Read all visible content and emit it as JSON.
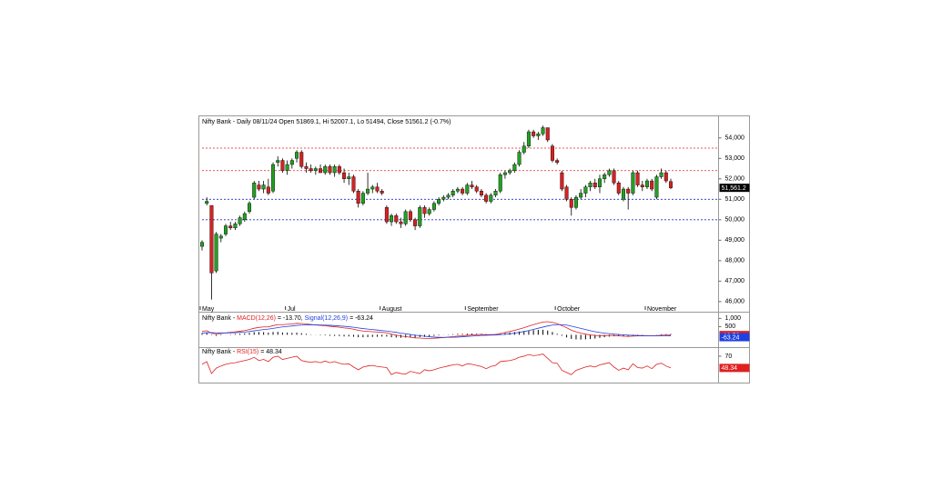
{
  "chart_data": [
    {
      "type": "candlestick",
      "title": "Nifty Bank - Daily 08/11/24 Open 51869.1, Hi 52007.1, Lo 51494, Close 51561.2 (-0.7%)",
      "categories": [
        "May",
        null,
        null,
        null,
        null,
        null,
        null,
        null,
        null,
        null,
        null,
        null,
        null,
        null,
        null,
        null,
        null,
        null,
        "Jul",
        null,
        null,
        null,
        null,
        null,
        null,
        null,
        null,
        null,
        null,
        null,
        null,
        null,
        null,
        null,
        null,
        null,
        null,
        null,
        "August",
        null,
        null,
        null,
        null,
        null,
        null,
        null,
        null,
        null,
        null,
        null,
        null,
        null,
        null,
        null,
        null,
        null,
        "September",
        null,
        null,
        null,
        null,
        null,
        null,
        null,
        null,
        null,
        null,
        null,
        null,
        null,
        null,
        null,
        null,
        null,
        null,
        "October",
        null,
        null,
        null,
        null,
        null,
        null,
        null,
        null,
        null,
        null,
        null,
        null,
        null,
        null,
        null,
        null,
        null,
        null,
        "November",
        null,
        null,
        null,
        null,
        null
      ],
      "ohlc": [
        [
          48700,
          49000,
          48500,
          48900
        ],
        [
          50800,
          51100,
          50700,
          50900
        ],
        [
          50700,
          50700,
          46100,
          47400
        ],
        [
          47500,
          49400,
          47400,
          49300
        ],
        [
          49100,
          49300,
          48900,
          49200
        ],
        [
          49300,
          49800,
          49200,
          49700
        ],
        [
          49700,
          49900,
          49500,
          49600
        ],
        [
          49600,
          49900,
          49500,
          49800
        ],
        [
          49800,
          50200,
          49700,
          50100
        ],
        [
          50000,
          50400,
          49900,
          50300
        ],
        [
          50400,
          50900,
          50300,
          50800
        ],
        [
          51100,
          51900,
          51000,
          51800
        ],
        [
          51700,
          51900,
          51400,
          51500
        ],
        [
          51500,
          51900,
          51300,
          51700
        ],
        [
          51600,
          52000,
          51200,
          51300
        ],
        [
          51400,
          52800,
          51300,
          52700
        ],
        [
          52800,
          53100,
          52600,
          52900
        ],
        [
          52900,
          53000,
          52300,
          52400
        ],
        [
          52400,
          52900,
          52200,
          52700
        ],
        [
          52700,
          53000,
          52500,
          52900
        ],
        [
          53000,
          53400,
          52800,
          53300
        ],
        [
          53300,
          53400,
          52500,
          52600
        ],
        [
          52600,
          52800,
          52300,
          52500
        ],
        [
          52500,
          52700,
          52300,
          52400
        ],
        [
          52400,
          52600,
          52200,
          52500
        ],
        [
          52500,
          52700,
          52300,
          52300
        ],
        [
          52300,
          52700,
          52200,
          52600
        ],
        [
          52600,
          52700,
          52200,
          52300
        ],
        [
          52300,
          52700,
          52100,
          52600
        ],
        [
          52600,
          52700,
          52200,
          52300
        ],
        [
          52300,
          52500,
          51800,
          52000
        ],
        [
          52000,
          52300,
          51700,
          52100
        ],
        [
          52100,
          52200,
          51300,
          51400
        ],
        [
          51400,
          51500,
          50600,
          50800
        ],
        [
          50800,
          51400,
          50700,
          51300
        ],
        [
          51300,
          52300,
          51200,
          51500
        ],
        [
          51500,
          51700,
          51300,
          51600
        ],
        [
          51600,
          51800,
          51300,
          51400
        ],
        [
          51400,
          51500,
          51200,
          51300
        ],
        [
          50600,
          50700,
          49800,
          49900
        ],
        [
          49900,
          50300,
          49700,
          50200
        ],
        [
          50200,
          50300,
          49800,
          49900
        ],
        [
          49900,
          50100,
          49600,
          49800
        ],
        [
          49800,
          50500,
          49700,
          50400
        ],
        [
          50400,
          50500,
          49900,
          50000
        ],
        [
          50000,
          50100,
          49500,
          49700
        ],
        [
          49700,
          50700,
          49600,
          50600
        ],
        [
          50600,
          50700,
          50100,
          50300
        ],
        [
          50300,
          50600,
          50200,
          50500
        ],
        [
          50500,
          50900,
          50400,
          50800
        ],
        [
          50800,
          51100,
          50700,
          51000
        ],
        [
          51000,
          51200,
          50900,
          51100
        ],
        [
          51100,
          51300,
          51000,
          51200
        ],
        [
          51200,
          51500,
          51100,
          51400
        ],
        [
          51400,
          51600,
          51300,
          51500
        ],
        [
          51500,
          51600,
          51200,
          51300
        ],
        [
          51300,
          51800,
          51200,
          51700
        ],
        [
          51700,
          51900,
          51500,
          51600
        ],
        [
          51600,
          51700,
          51300,
          51400
        ],
        [
          51400,
          51500,
          51100,
          51200
        ],
        [
          51200,
          51300,
          50800,
          50900
        ],
        [
          50900,
          51300,
          50800,
          51200
        ],
        [
          51200,
          51500,
          51100,
          51400
        ],
        [
          51400,
          52300,
          51300,
          52200
        ],
        [
          52200,
          52400,
          52000,
          52300
        ],
        [
          52300,
          52500,
          52200,
          52400
        ],
        [
          52400,
          52800,
          52300,
          52700
        ],
        [
          52700,
          53400,
          52600,
          53300
        ],
        [
          53300,
          53800,
          53200,
          53600
        ],
        [
          53600,
          54400,
          53500,
          54300
        ],
        [
          54300,
          54400,
          54000,
          54100
        ],
        [
          54100,
          54300,
          53900,
          54200
        ],
        [
          54200,
          54600,
          54100,
          54500
        ],
        [
          54500,
          54500,
          53800,
          53900
        ],
        [
          53600,
          53700,
          52800,
          52900
        ],
        [
          52900,
          53000,
          52700,
          52800
        ],
        [
          52300,
          52400,
          51400,
          51500
        ],
        [
          51600,
          51700,
          50900,
          51000
        ],
        [
          51000,
          51100,
          50200,
          50600
        ],
        [
          50600,
          51200,
          50500,
          51100
        ],
        [
          51100,
          51500,
          51000,
          51300
        ],
        [
          51300,
          51700,
          51100,
          51600
        ],
        [
          51600,
          51900,
          51400,
          51800
        ],
        [
          51800,
          52000,
          51500,
          51600
        ],
        [
          51600,
          52200,
          51300,
          52000
        ],
        [
          52000,
          52300,
          51800,
          52200
        ],
        [
          52200,
          52500,
          52100,
          52400
        ],
        [
          52400,
          52500,
          51700,
          51800
        ],
        [
          51800,
          51900,
          51200,
          51300
        ],
        [
          51000,
          51600,
          50900,
          51500
        ],
        [
          51500,
          51600,
          50500,
          51300
        ],
        [
          51300,
          52400,
          51200,
          52300
        ],
        [
          52300,
          52400,
          51600,
          51700
        ],
        [
          51700,
          51900,
          51400,
          51600
        ],
        [
          51600,
          52000,
          51500,
          51900
        ],
        [
          51900,
          52000,
          51400,
          51500
        ],
        [
          51100,
          52200,
          51000,
          52100
        ],
        [
          52100,
          52500,
          52000,
          52300
        ],
        [
          52300,
          52400,
          51800,
          51900
        ],
        [
          51869,
          52007.1,
          51494,
          51561.2
        ]
      ],
      "up_color": "#23a023",
      "down_color": "#d82020",
      "ylim": [
        45550,
        55100
      ],
      "yticks": [
        {
          "value": 46000,
          "label": "46,000"
        },
        {
          "value": 47000,
          "label": "47,000"
        },
        {
          "value": 48000,
          "label": "48,000"
        },
        {
          "value": 49000,
          "label": "49,000"
        },
        {
          "value": 50000,
          "label": "50,000"
        },
        {
          "value": 51000,
          "label": "51,000"
        },
        {
          "value": 52000,
          "label": "52,000"
        },
        {
          "value": 53000,
          "label": "53,000"
        },
        {
          "value": 54000,
          "label": "54,000"
        }
      ],
      "hlines": [
        {
          "value": 53500,
          "color": "#e02020"
        },
        {
          "value": 52400,
          "color": "#e02020"
        },
        {
          "value": 51000,
          "color": "#2030c0"
        },
        {
          "value": 50000,
          "color": "#2030c0"
        }
      ],
      "last_label": {
        "value": 51561.2,
        "label": "51,561.2"
      }
    },
    {
      "type": "macd",
      "title_segments": [
        {
          "text": "Nifty Bank - ",
          "color": "#000000"
        },
        {
          "text": "MACD(12,26)",
          "color": "#e02020"
        },
        {
          "text": " = -13.70, ",
          "color": "#000000"
        },
        {
          "text": "Signal(12,26,9)",
          "color": "#2040e0"
        },
        {
          "text": " = -63.24",
          "color": "#000000"
        }
      ],
      "series": [
        {
          "name": "MACD(12,26)",
          "color": "#e02020",
          "last_label": "-13.70",
          "values": [
            200,
            250,
            100,
            50,
            80,
            120,
            150,
            180,
            220,
            260,
            320,
            400,
            450,
            480,
            480,
            560,
            620,
            620,
            640,
            660,
            700,
            690,
            660,
            630,
            600,
            570,
            550,
            520,
            490,
            460,
            420,
            390,
            340,
            270,
            230,
            210,
            190,
            170,
            150,
            120,
            40,
            -20,
            -80,
            -110,
            -150,
            -190,
            -200,
            -220,
            -220,
            -210,
            -190,
            -170,
            -140,
            -110,
            -80,
            -60,
            -30,
            -10,
            10,
            20,
            10,
            10,
            20,
            80,
            140,
            200,
            270,
            350,
            430,
            530,
            620,
            700,
            780,
            800,
            760,
            680,
            560,
            430,
            280,
            180,
            100,
            40,
            -10,
            -40,
            -50,
            -50,
            -40,
            -50,
            -70,
            -90,
            -100,
            -80,
            -70,
            -70,
            -60,
            -60,
            -50,
            -30,
            -20,
            -13.7
          ]
        },
        {
          "name": "Signal(12,26,9)",
          "color": "#2040e0",
          "last_label": "-63.24",
          "values": [
            100,
            130,
            130,
            120,
            110,
            110,
            120,
            130,
            150,
            170,
            200,
            240,
            280,
            320,
            350,
            390,
            440,
            480,
            510,
            540,
            570,
            590,
            600,
            610,
            610,
            600,
            590,
            580,
            560,
            540,
            520,
            490,
            460,
            420,
            380,
            350,
            320,
            290,
            260,
            230,
            190,
            150,
            100,
            60,
            20,
            -20,
            -60,
            -90,
            -120,
            -140,
            -150,
            -160,
            -160,
            -150,
            -140,
            -120,
            -100,
            -80,
            -60,
            -40,
            -30,
            -20,
            -10,
            10,
            30,
            60,
            100,
            150,
            200,
            260,
            330,
            400,
            470,
            540,
            590,
            620,
            620,
            590,
            530,
            460,
            390,
            320,
            250,
            190,
            140,
            100,
            70,
            40,
            20,
            0,
            -20,
            -30,
            -40,
            -50,
            -55,
            -60,
            -60,
            -62,
            -63,
            -63.24
          ]
        }
      ],
      "histogram": {
        "color": "#000000",
        "values": [
          100,
          120,
          -30,
          -70,
          -30,
          10,
          30,
          50,
          70,
          90,
          120,
          160,
          170,
          160,
          130,
          170,
          180,
          140,
          130,
          120,
          130,
          100,
          60,
          20,
          -10,
          -30,
          -40,
          -60,
          -70,
          -80,
          -100,
          -100,
          -120,
          -150,
          -150,
          -140,
          -130,
          -120,
          -110,
          -110,
          -150,
          -170,
          -180,
          -170,
          -170,
          -170,
          -140,
          -130,
          -100,
          -70,
          -40,
          -10,
          20,
          40,
          60,
          60,
          70,
          70,
          70,
          60,
          40,
          30,
          30,
          70,
          110,
          140,
          170,
          200,
          230,
          270,
          290,
          300,
          310,
          260,
          170,
          60,
          -60,
          -160,
          -250,
          -280,
          -290,
          -280,
          -260,
          -230,
          -190,
          -150,
          -110,
          -90,
          -90,
          -90,
          -80,
          -50,
          -30,
          -20,
          -5,
          0,
          10,
          32,
          43,
          49.54
        ]
      },
      "ylim": [
        -700,
        1300
      ],
      "yticks": [
        500,
        {
          "value": 1000,
          "label": "1,000"
        }
      ]
    },
    {
      "type": "line",
      "title_segments": [
        {
          "text": "Nifty Bank - ",
          "color": "#000000"
        },
        {
          "text": "RSI(15)",
          "color": "#e02020"
        },
        {
          "text": " = 48.34",
          "color": "#000000"
        }
      ],
      "series": [
        {
          "name": "RSI(15)",
          "color": "#e02020",
          "values": [
            55,
            60,
            38,
            48,
            52,
            55,
            57,
            58,
            60,
            62,
            64,
            68,
            62,
            64,
            60,
            68,
            70,
            64,
            66,
            68,
            70,
            62,
            60,
            59,
            60,
            58,
            61,
            58,
            60,
            57,
            55,
            56,
            50,
            45,
            50,
            52,
            53,
            51,
            50,
            49,
            36,
            40,
            38,
            37,
            42,
            40,
            38,
            45,
            43,
            45,
            48,
            50,
            52,
            54,
            55,
            52,
            56,
            55,
            53,
            51,
            47,
            51,
            53,
            60,
            61,
            62,
            64,
            68,
            70,
            73,
            71,
            72,
            74,
            66,
            58,
            57,
            44,
            40,
            36,
            44,
            47,
            50,
            52,
            50,
            54,
            56,
            58,
            50,
            44,
            48,
            45,
            56,
            49,
            48,
            52,
            47,
            55,
            57,
            52,
            48.34
          ]
        }
      ],
      "ylim": [
        23,
        85
      ],
      "yticks": [
        70
      ]
    }
  ]
}
